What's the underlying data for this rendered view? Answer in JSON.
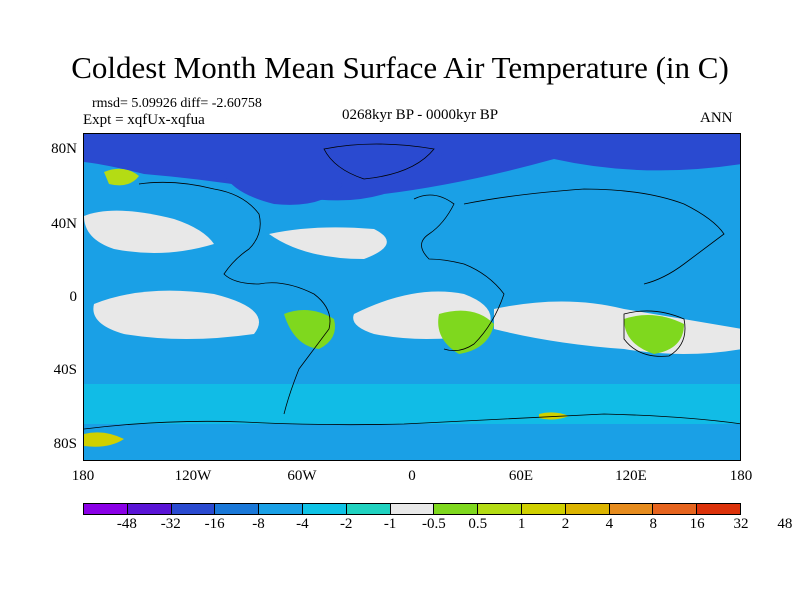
{
  "title": "Coldest Month Mean Surface Air Temperature (in C)",
  "stats": "rmsd= 5.09926 diff= -2.60758",
  "expt": "Expt = xqfUx-xqfua",
  "period": "0268kyr BP - 0000kyr BP",
  "season": "ANN",
  "lat_labels": [
    "80N",
    "40N",
    "0",
    "40S",
    "80S"
  ],
  "lon_labels": [
    "180",
    "120W",
    "60W",
    "0",
    "60E",
    "120E",
    "180"
  ],
  "colorbar": {
    "colors": [
      "#8a00e6",
      "#5a14d6",
      "#2a4ad0",
      "#1a78d8",
      "#1aa0e6",
      "#0fc3e6",
      "#20d2c0",
      "#e8e8e8",
      "#7fd81e",
      "#b4dc14",
      "#d0d000",
      "#dcb400",
      "#e68c1e",
      "#e6641e",
      "#dc320a"
    ],
    "labels": [
      "-48",
      "-32",
      "-16",
      "-8",
      "-4",
      "-2",
      "-1",
      "-0.5",
      "0.5",
      "1",
      "2",
      "4",
      "8",
      "16",
      "32",
      "48"
    ]
  }
}
